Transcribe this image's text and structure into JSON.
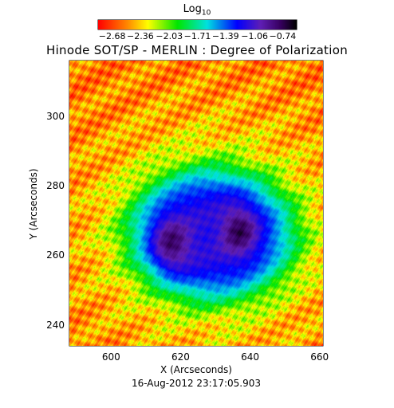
{
  "chart_data": {
    "type": "heatmap",
    "title": "Hinode SOT/SP - MERLIN : Degree of Polarization",
    "xlabel": "X (Arcseconds)",
    "ylabel": "Y (Arcseconds)",
    "date": "16-Aug-2012 23:17:05.903",
    "xlim": [
      588,
      661
    ],
    "ylim": [
      234,
      316
    ],
    "x_ticks": [
      "600",
      "620",
      "640",
      "660"
    ],
    "x_tick_values": [
      600,
      620,
      640,
      660
    ],
    "y_ticks": [
      "240",
      "260",
      "280",
      "300"
    ],
    "y_tick_values": [
      240,
      260,
      280,
      300
    ],
    "colorbar": {
      "title": "Log",
      "title_subscript": "10",
      "range": [
        -2.84,
        -0.58
      ],
      "ticks": [
        "−2.68",
        "−2.36",
        "−2.03",
        "−1.71",
        "−1.39",
        "−1.06",
        "−0.74"
      ],
      "tick_values": [
        -2.68,
        -2.36,
        -2.03,
        -1.71,
        -1.39,
        -1.06,
        -0.74
      ]
    },
    "features": {
      "sunspot_umbrae": [
        {
          "x": 617,
          "y": 263,
          "value": -0.7
        },
        {
          "x": 637,
          "y": 267,
          "value": -0.72
        }
      ],
      "penumbra_value": -1.15,
      "quiet_sun_value": -2.55
    }
  }
}
